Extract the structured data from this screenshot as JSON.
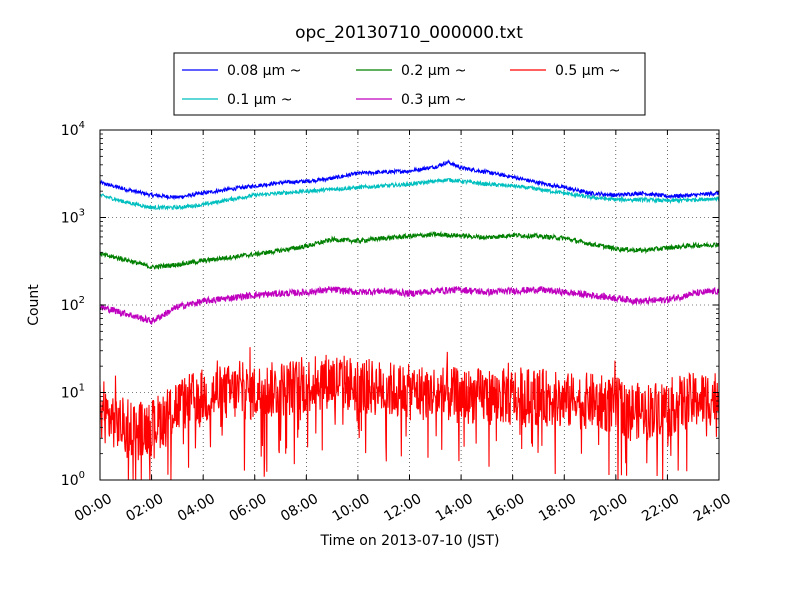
{
  "chart_data": {
    "type": "line",
    "title": "opc_20130710_000000.txt",
    "xlabel": "Time on 2013-07-10 (JST)",
    "ylabel": "Count",
    "x_range": [
      "00:00",
      "24:00"
    ],
    "y_scale": "log",
    "ylim": [
      1,
      10000
    ],
    "y_ticks": [
      {
        "value": 1,
        "base": "10",
        "exp": "0"
      },
      {
        "value": 10,
        "base": "10",
        "exp": "1"
      },
      {
        "value": 100,
        "base": "10",
        "exp": "2"
      },
      {
        "value": 1000,
        "base": "10",
        "exp": "3"
      },
      {
        "value": 10000,
        "base": "10",
        "exp": "4"
      }
    ],
    "x_ticks": [
      "00:00",
      "02:00",
      "04:00",
      "06:00",
      "08:00",
      "10:00",
      "12:00",
      "14:00",
      "16:00",
      "18:00",
      "20:00",
      "22:00",
      "24:00"
    ],
    "grid": true,
    "legend_position": "above plot, centered",
    "series": [
      {
        "name": "0.08 μm ~",
        "color": "#0000ff",
        "hours": [
          0,
          1,
          2,
          3,
          4,
          5,
          6,
          7,
          8,
          9,
          10,
          11,
          12,
          13,
          13.5,
          14,
          15,
          16,
          17,
          18,
          19,
          20,
          21,
          22,
          23,
          24
        ],
        "values": [
          2500,
          2100,
          1800,
          1700,
          1900,
          2100,
          2300,
          2500,
          2600,
          2800,
          3200,
          3300,
          3400,
          3800,
          4300,
          3700,
          3300,
          2900,
          2500,
          2200,
          1900,
          1800,
          1900,
          1750,
          1800,
          1900
        ]
      },
      {
        "name": "0.1 μm ~",
        "color": "#00bfbf",
        "hours": [
          0,
          1,
          2,
          3,
          4,
          5,
          6,
          7,
          8,
          9,
          10,
          11,
          12,
          13,
          13.5,
          14,
          15,
          16,
          17,
          18,
          19,
          20,
          21,
          22,
          23,
          24
        ],
        "values": [
          1800,
          1500,
          1300,
          1300,
          1400,
          1600,
          1800,
          1900,
          2000,
          2100,
          2200,
          2300,
          2400,
          2600,
          2700,
          2600,
          2400,
          2300,
          2100,
          1900,
          1700,
          1600,
          1600,
          1550,
          1600,
          1650
        ]
      },
      {
        "name": "0.2 μm ~",
        "color": "#008000",
        "hours": [
          0,
          1,
          2,
          3,
          4,
          5,
          6,
          7,
          8,
          9,
          10,
          11,
          12,
          13,
          14,
          15,
          16,
          17,
          18,
          19,
          20,
          21,
          22,
          23,
          24
        ],
        "values": [
          380,
          330,
          270,
          290,
          320,
          350,
          380,
          420,
          470,
          560,
          540,
          580,
          610,
          640,
          620,
          590,
          630,
          610,
          580,
          500,
          440,
          420,
          450,
          480,
          490
        ]
      },
      {
        "name": "0.3 μm ~",
        "color": "#bf00bf",
        "hours": [
          0,
          1,
          2,
          3,
          4,
          5,
          6,
          7,
          8,
          9,
          10,
          11,
          12,
          13,
          14,
          15,
          16,
          17,
          18,
          19,
          20,
          21,
          22,
          23,
          24
        ],
        "values": [
          95,
          80,
          65,
          95,
          110,
          120,
          130,
          135,
          140,
          150,
          140,
          145,
          135,
          145,
          150,
          140,
          145,
          150,
          140,
          130,
          120,
          110,
          115,
          135,
          145
        ]
      },
      {
        "name": "0.5 μm ~",
        "color": "#ff0000",
        "hours": [
          0,
          1,
          2,
          3,
          4,
          5,
          6,
          7,
          8,
          9,
          10,
          11,
          12,
          13,
          14,
          15,
          16,
          17,
          18,
          19,
          20,
          21,
          22,
          23,
          24
        ],
        "values": [
          6,
          4,
          4,
          7,
          9,
          10,
          10,
          11,
          12,
          14,
          12,
          11,
          10,
          10,
          9,
          9,
          9,
          9,
          8,
          8,
          7,
          6,
          7,
          8,
          9
        ]
      }
    ]
  }
}
